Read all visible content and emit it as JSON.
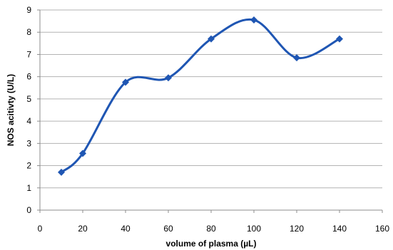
{
  "chart_data": {
    "type": "line",
    "title": "",
    "xlabel": "volume of plasma (µL)",
    "ylabel": "NOS acitivty (U/L)",
    "xlim": [
      0,
      160
    ],
    "ylim": [
      0,
      9
    ],
    "x_ticks": [
      "0",
      "20",
      "40",
      "60",
      "80",
      "100",
      "120",
      "140",
      "160"
    ],
    "y_ticks": [
      "0",
      "1",
      "2",
      "3",
      "4",
      "5",
      "6",
      "7",
      "8",
      "9"
    ],
    "grid": "horizontal",
    "legend": "none",
    "smooth": true,
    "marker": "diamond",
    "series": [
      {
        "color": "#1f56b3",
        "x": [
          10,
          20,
          40,
          60,
          80,
          100,
          120,
          140
        ],
        "y": [
          1.7,
          2.55,
          5.75,
          5.95,
          7.7,
          8.55,
          6.85,
          7.7
        ]
      }
    ]
  }
}
